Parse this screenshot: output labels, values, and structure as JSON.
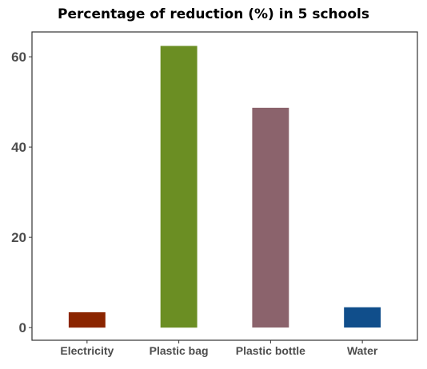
{
  "chart_data": {
    "type": "bar",
    "title": "Percentage of reduction (%) in 5 schools",
    "xlabel": "",
    "ylabel": "",
    "categories": [
      "Electricity",
      "Plastic bag",
      "Plastic bottle",
      "Water"
    ],
    "values": [
      3.4,
      62.4,
      48.7,
      4.5
    ],
    "colors": [
      "#8b2500",
      "#6b8e23",
      "#8b636c",
      "#104e8b"
    ],
    "yticks": [
      0,
      20,
      40,
      60
    ],
    "ylim": [
      -2.8,
      65.5
    ],
    "grid": false,
    "legend": "none"
  }
}
